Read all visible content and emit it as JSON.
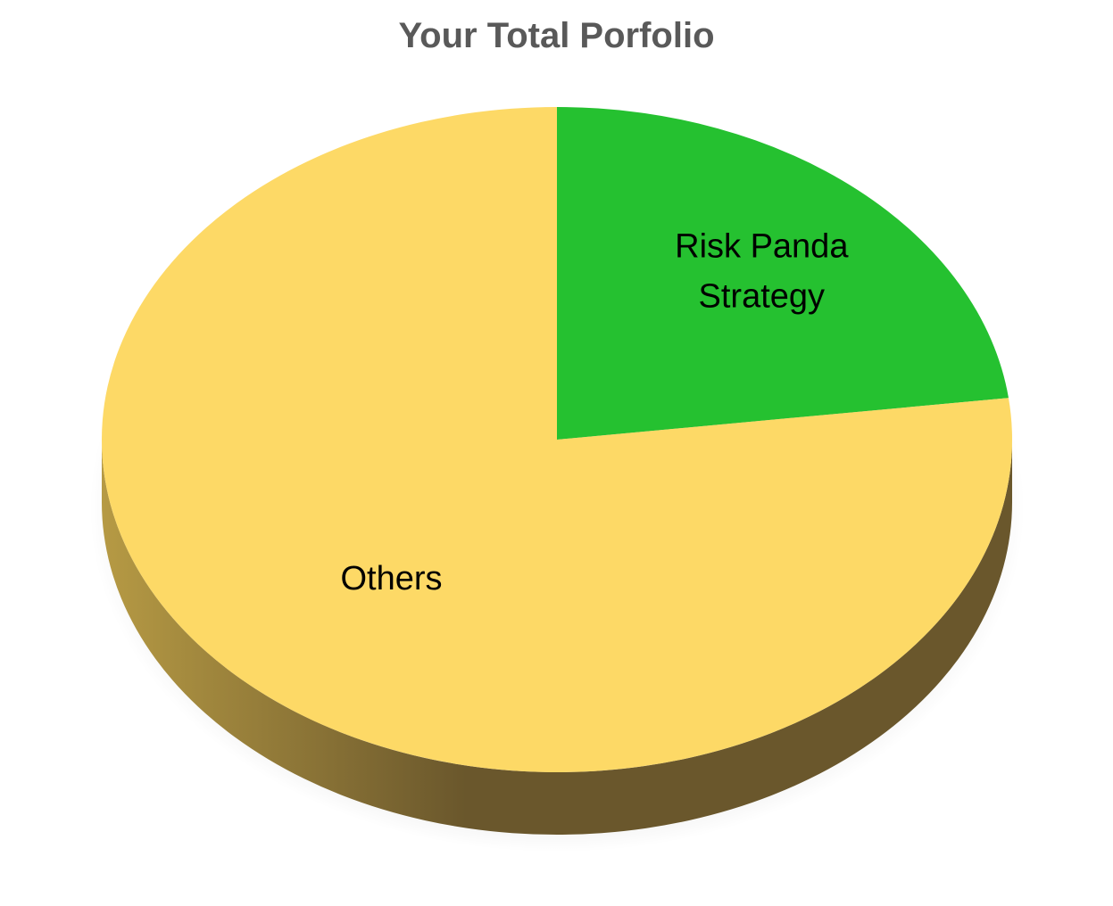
{
  "chart_data": {
    "type": "pie",
    "style": "3d",
    "title": "Your Total Porfolio",
    "slices": [
      {
        "label": "Risk Panda Strategy",
        "label_lines": [
          "Risk Panda",
          "Strategy"
        ],
        "value": 23,
        "color": "#25C130"
      },
      {
        "label": "Others",
        "label_lines": [
          "Others"
        ],
        "value": 77,
        "color": "#FDD966"
      }
    ],
    "start_angle_deg": 0,
    "direction": "clockwise",
    "legend": "none",
    "colors": {
      "title": "#595959",
      "side_light": "#B69A44",
      "side_dark": "#6A572C"
    }
  }
}
